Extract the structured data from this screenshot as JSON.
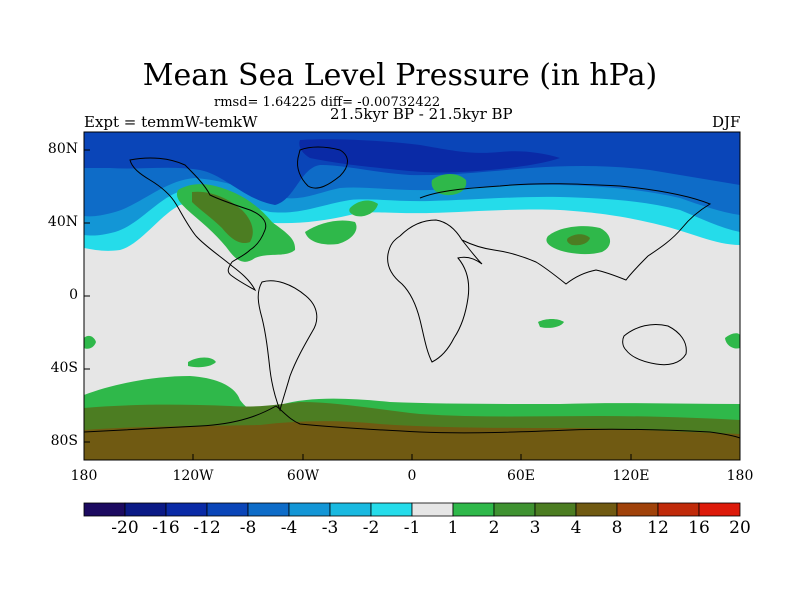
{
  "title": "Mean Sea Level Pressure (in hPa)",
  "stats_text": "rmsd= 1.64225 diff= -0.00732422",
  "subtitle": "21.5kyr BP - 21.5kyr BP",
  "experiment": "Expt = temmW-temkW",
  "season": "DJF",
  "y_ticks": [
    "80N",
    "40N",
    "0",
    "40S",
    "80S"
  ],
  "x_ticks": [
    "180",
    "120W",
    "60W",
    "0",
    "60E",
    "120E",
    "180"
  ],
  "colorbar": {
    "labels": [
      "-20",
      "-16",
      "-12",
      "-8",
      "-4",
      "-3",
      "-2",
      "-1",
      "1",
      "2",
      "3",
      "4",
      "8",
      "12",
      "16",
      "20"
    ],
    "colors": [
      "#1c0a60",
      "#0b1a86",
      "#0a2aa6",
      "#0a45b8",
      "#0e6cc8",
      "#1396d6",
      "#19b9e0",
      "#25dcea",
      "#e6e6e6",
      "#2fb84a",
      "#3f9231",
      "#4c7d22",
      "#705a12",
      "#a0420a",
      "#c02a0a",
      "#dd1a0a"
    ]
  },
  "colors": {
    "land_outline": "#000000",
    "neutral": "#e6e6e6",
    "deep_blue": "#0a45b8",
    "mid_blue": "#0e6cc8",
    "light_blue": "#1396d6",
    "cyan": "#25dcea",
    "green": "#2fb84a",
    "olive": "#4c7d22",
    "brown": "#705a12"
  }
}
